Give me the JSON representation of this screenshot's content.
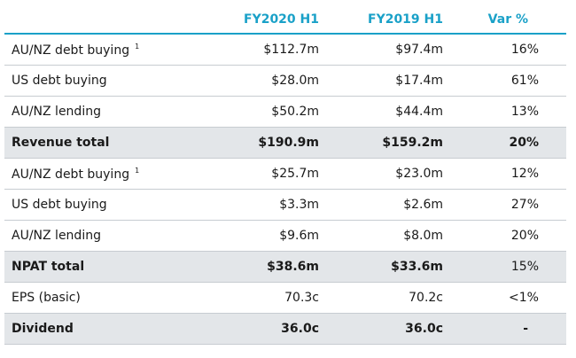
{
  "header": {
    "label": "",
    "fy2020": "FY2020 H1",
    "fy2019": "FY2019 H1",
    "var": "Var %"
  },
  "rows": [
    {
      "label": "AU/NZ debt buying",
      "sup": "1",
      "fy2020": "$112.7m",
      "fy2019": "$97.4m",
      "var": "16%"
    },
    {
      "label": "US debt buying",
      "sup": "",
      "fy2020": "$28.0m",
      "fy2019": "$17.4m",
      "var": "61%"
    },
    {
      "label": "AU/NZ lending",
      "sup": "",
      "fy2020": "$50.2m",
      "fy2019": "$44.4m",
      "var": "13%"
    },
    {
      "label": "Revenue total",
      "sup": "",
      "fy2020": "$190.9m",
      "fy2019": "$159.2m",
      "var": "20%"
    },
    {
      "label": "AU/NZ debt buying",
      "sup": "1",
      "fy2020": "$25.7m",
      "fy2019": "$23.0m",
      "var": "12%"
    },
    {
      "label": "US debt buying",
      "sup": "",
      "fy2020": "$3.3m",
      "fy2019": "$2.6m",
      "var": "27%"
    },
    {
      "label": "AU/NZ lending",
      "sup": "",
      "fy2020": "$9.6m",
      "fy2019": "$8.0m",
      "var": "20%"
    },
    {
      "label": "NPAT total",
      "sup": "",
      "fy2020": "$38.6m",
      "fy2019": "$33.6m",
      "var": "15%"
    },
    {
      "label": "EPS (basic)",
      "sup": "",
      "fy2020": "70.3c",
      "fy2019": "70.2c",
      "var": "<1%"
    },
    {
      "label": "Dividend",
      "sup": "",
      "fy2020": "36.0c",
      "fy2019": "36.0c",
      "var": "-"
    }
  ],
  "colors": {
    "accent": "#1aa1c8",
    "shade": "#e3e6e9",
    "divider": "#c7ccd1"
  }
}
